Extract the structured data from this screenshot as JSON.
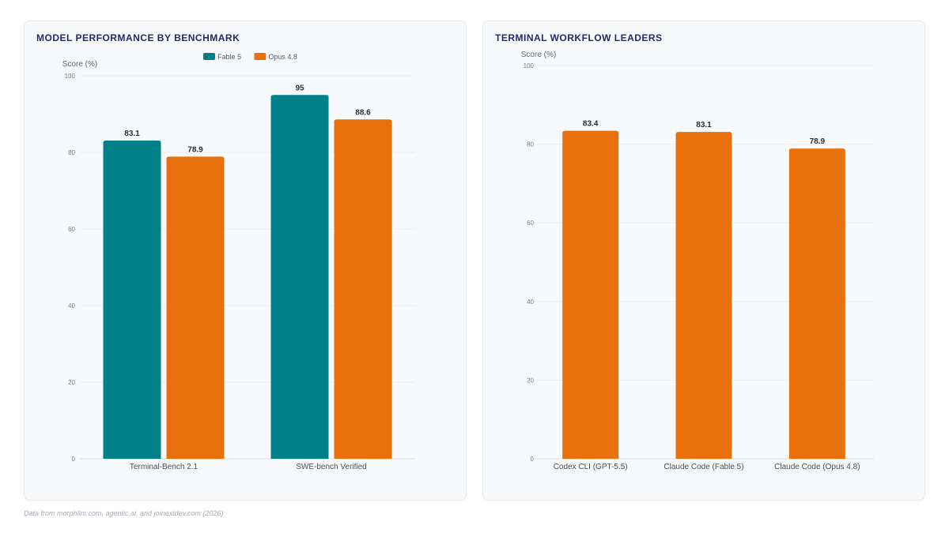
{
  "colors": {
    "fable": "#008189",
    "opus": "#e8700d",
    "title": "#1f2a6b",
    "grid": "#eceef2",
    "axis_text": "#777c85"
  },
  "chart_data": [
    {
      "type": "bar",
      "title": "MODEL PERFORMANCE BY BENCHMARK",
      "ylabel": "Score (%)",
      "xlabel": "",
      "ylim": [
        0,
        100
      ],
      "yticks": [
        0,
        20,
        40,
        60,
        80,
        100
      ],
      "grid": true,
      "legend": "top-center",
      "categories": [
        "Terminal-Bench 2.1",
        "SWE-bench Verified"
      ],
      "series": [
        {
          "name": "Fable 5",
          "values": [
            83.1,
            95
          ],
          "labels": [
            "83.1",
            "95"
          ],
          "color": "#008189"
        },
        {
          "name": "Opus 4.8",
          "values": [
            78.9,
            88.6
          ],
          "labels": [
            "78.9",
            "88.6"
          ],
          "color": "#e8700d"
        }
      ]
    },
    {
      "type": "bar",
      "title": "TERMINAL WORKFLOW LEADERS",
      "ylabel": "Score (%)",
      "xlabel": "",
      "ylim": [
        0,
        100
      ],
      "yticks": [
        0,
        20,
        40,
        60,
        80,
        100
      ],
      "grid": true,
      "categories": [
        "Codex CLI (GPT-5.5)",
        "Claude Code (Fable 5)",
        "Claude Code (Opus 4.8)"
      ],
      "series": [
        {
          "values": [
            83.4,
            83.1,
            78.9
          ],
          "labels": [
            "83.4",
            "83.1",
            "78.9"
          ],
          "color": "#e8700d"
        }
      ]
    }
  ],
  "footnote": "Data from morphllm.com, agentic.ai, and joinextdev.com (2026)"
}
